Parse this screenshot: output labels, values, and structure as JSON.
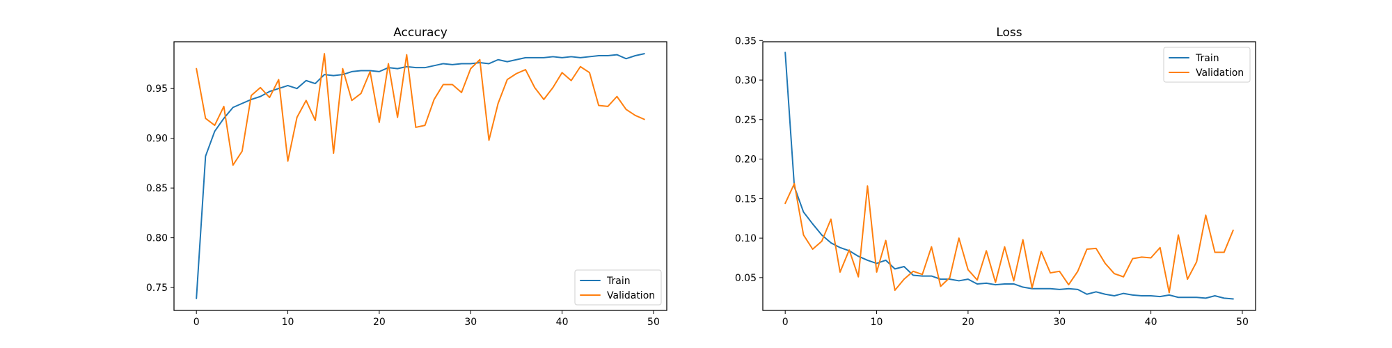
{
  "chart_data": [
    {
      "type": "line",
      "title": "Accuracy",
      "xlabel": "",
      "ylabel": "",
      "xlim": [
        -2.45,
        51.45
      ],
      "ylim": [
        0.727,
        0.997
      ],
      "xticks": [
        0,
        10,
        20,
        30,
        40,
        50
      ],
      "yticks": [
        0.75,
        0.8,
        0.85,
        0.9,
        0.95
      ],
      "ytick_labels": [
        "0.75",
        "0.80",
        "0.85",
        "0.90",
        "0.95"
      ],
      "legend_position": "lower-right",
      "x": [
        0,
        1,
        2,
        3,
        4,
        5,
        6,
        7,
        8,
        9,
        10,
        11,
        12,
        13,
        14,
        15,
        16,
        17,
        18,
        19,
        20,
        21,
        22,
        23,
        24,
        25,
        26,
        27,
        28,
        29,
        30,
        31,
        32,
        33,
        34,
        35,
        36,
        37,
        38,
        39,
        40,
        41,
        42,
        43,
        44,
        45,
        46,
        47,
        48,
        49
      ],
      "series": [
        {
          "name": "Train",
          "color": "#1f77b4",
          "values": [
            0.739,
            0.882,
            0.907,
            0.92,
            0.931,
            0.935,
            0.939,
            0.942,
            0.947,
            0.95,
            0.953,
            0.95,
            0.958,
            0.955,
            0.964,
            0.963,
            0.964,
            0.967,
            0.968,
            0.968,
            0.967,
            0.971,
            0.97,
            0.972,
            0.971,
            0.971,
            0.973,
            0.975,
            0.974,
            0.975,
            0.975,
            0.976,
            0.975,
            0.979,
            0.977,
            0.979,
            0.981,
            0.981,
            0.981,
            0.982,
            0.981,
            0.982,
            0.981,
            0.982,
            0.983,
            0.983,
            0.984,
            0.98,
            0.983,
            0.985
          ]
        },
        {
          "name": "Validation",
          "color": "#ff7f0e",
          "values": [
            0.97,
            0.92,
            0.913,
            0.932,
            0.873,
            0.887,
            0.943,
            0.951,
            0.941,
            0.959,
            0.877,
            0.921,
            0.938,
            0.918,
            0.985,
            0.885,
            0.97,
            0.938,
            0.945,
            0.967,
            0.916,
            0.975,
            0.921,
            0.984,
            0.911,
            0.913,
            0.939,
            0.954,
            0.954,
            0.946,
            0.97,
            0.979,
            0.898,
            0.935,
            0.959,
            0.965,
            0.969,
            0.951,
            0.939,
            0.951,
            0.966,
            0.958,
            0.972,
            0.966,
            0.933,
            0.932,
            0.942,
            0.929,
            0.923,
            0.919
          ]
        }
      ]
    },
    {
      "type": "line",
      "title": "Loss",
      "xlabel": "",
      "ylabel": "",
      "xlim": [
        -2.45,
        51.45
      ],
      "ylim": [
        0.0085,
        0.3485
      ],
      "xticks": [
        0,
        10,
        20,
        30,
        40,
        50
      ],
      "yticks": [
        0.05,
        0.1,
        0.15,
        0.2,
        0.25,
        0.3,
        0.35
      ],
      "ytick_labels": [
        "0.05",
        "0.10",
        "0.15",
        "0.20",
        "0.25",
        "0.30",
        "0.35"
      ],
      "legend_position": "upper-right",
      "x": [
        0,
        1,
        2,
        3,
        4,
        5,
        6,
        7,
        8,
        9,
        10,
        11,
        12,
        13,
        14,
        15,
        16,
        17,
        18,
        19,
        20,
        21,
        22,
        23,
        24,
        25,
        26,
        27,
        28,
        29,
        30,
        31,
        32,
        33,
        34,
        35,
        36,
        37,
        38,
        39,
        40,
        41,
        42,
        43,
        44,
        45,
        46,
        47,
        48,
        49
      ],
      "series": [
        {
          "name": "Train",
          "color": "#1f77b4",
          "values": [
            0.335,
            0.165,
            0.133,
            0.118,
            0.104,
            0.094,
            0.088,
            0.084,
            0.077,
            0.072,
            0.068,
            0.072,
            0.061,
            0.064,
            0.053,
            0.052,
            0.052,
            0.048,
            0.048,
            0.046,
            0.048,
            0.042,
            0.043,
            0.041,
            0.042,
            0.042,
            0.038,
            0.036,
            0.036,
            0.036,
            0.035,
            0.036,
            0.035,
            0.029,
            0.032,
            0.029,
            0.027,
            0.03,
            0.028,
            0.027,
            0.027,
            0.026,
            0.028,
            0.025,
            0.025,
            0.025,
            0.024,
            0.027,
            0.024,
            0.023
          ]
        },
        {
          "name": "Validation",
          "color": "#ff7f0e",
          "values": [
            0.144,
            0.169,
            0.104,
            0.086,
            0.096,
            0.124,
            0.057,
            0.085,
            0.051,
            0.166,
            0.057,
            0.097,
            0.034,
            0.048,
            0.058,
            0.054,
            0.089,
            0.039,
            0.05,
            0.1,
            0.06,
            0.047,
            0.084,
            0.044,
            0.089,
            0.046,
            0.098,
            0.037,
            0.083,
            0.056,
            0.058,
            0.041,
            0.058,
            0.086,
            0.087,
            0.068,
            0.055,
            0.051,
            0.074,
            0.076,
            0.075,
            0.088,
            0.031,
            0.104,
            0.048,
            0.07,
            0.129,
            0.082,
            0.082,
            0.11
          ]
        }
      ]
    }
  ]
}
